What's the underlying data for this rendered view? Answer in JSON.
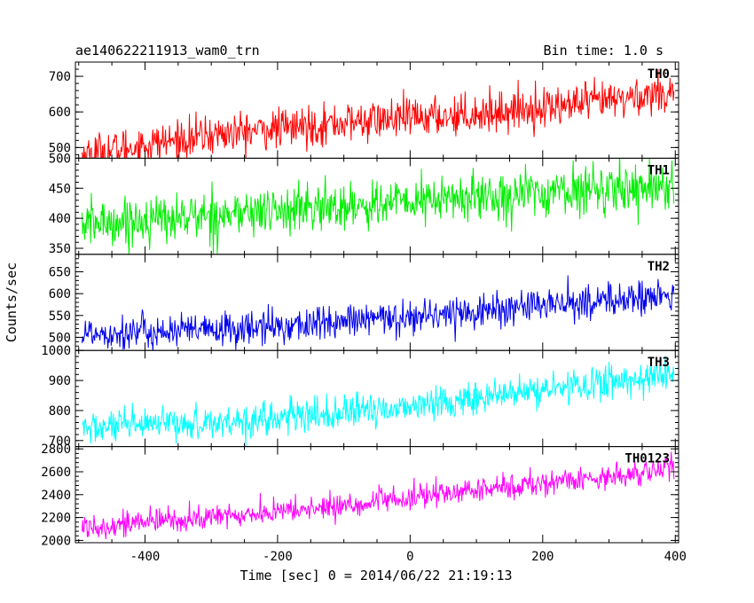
{
  "header": {
    "title": "ae140622211913_wam0_trn",
    "bin_time": "Bin time: 1.0 s"
  },
  "chart_data": {
    "type": "line",
    "xlabel": "Time [sec] 0 = 2014/06/22 21:19:13",
    "ylabel": "Counts/sec",
    "xlim": [
      -505,
      405
    ],
    "xticks": [
      "-400",
      "-200",
      "0",
      "200",
      "400"
    ],
    "panels": [
      {
        "name": "TH0",
        "color": "#ff0000",
        "ylim": [
          470,
          740
        ],
        "yticks": [
          "500",
          "600",
          "700"
        ],
        "trend": [
          [
            -495,
            480
          ],
          [
            -300,
            535
          ],
          [
            -100,
            570
          ],
          [
            100,
            595
          ],
          [
            300,
            630
          ],
          [
            398,
            660
          ]
        ],
        "noise": 28
      },
      {
        "name": "TH1",
        "color": "#00ee00",
        "ylim": [
          340,
          500
        ],
        "yticks": [
          "350",
          "400",
          "450",
          "500"
        ],
        "trend": [
          [
            -495,
            390
          ],
          [
            -300,
            405
          ],
          [
            -100,
            420
          ],
          [
            100,
            435
          ],
          [
            300,
            450
          ],
          [
            398,
            455
          ]
        ],
        "noise": 20
      },
      {
        "name": "TH2",
        "color": "#0000ee",
        "ylim": [
          470,
          690
        ],
        "yticks": [
          "500",
          "550",
          "600",
          "650"
        ],
        "trend": [
          [
            -495,
            510
          ],
          [
            -300,
            515
          ],
          [
            -100,
            535
          ],
          [
            100,
            560
          ],
          [
            300,
            585
          ],
          [
            398,
            595
          ]
        ],
        "noise": 20
      },
      {
        "name": "TH3",
        "color": "#00ffff",
        "ylim": [
          680,
          1000
        ],
        "yticks": [
          "700",
          "800",
          "900",
          "1000"
        ],
        "trend": [
          [
            -495,
            740
          ],
          [
            -300,
            760
          ],
          [
            -100,
            790
          ],
          [
            100,
            840
          ],
          [
            300,
            895
          ],
          [
            398,
            920
          ]
        ],
        "noise": 28
      },
      {
        "name": "TH0123",
        "color": "#ff00ff",
        "ylim": [
          1980,
          2820
        ],
        "yticks": [
          "2000",
          "2200",
          "2400",
          "2600",
          "2800"
        ],
        "trend": [
          [
            -495,
            2120
          ],
          [
            -300,
            2200
          ],
          [
            -100,
            2300
          ],
          [
            100,
            2440
          ],
          [
            300,
            2560
          ],
          [
            398,
            2630
          ]
        ],
        "noise": 55
      }
    ]
  }
}
